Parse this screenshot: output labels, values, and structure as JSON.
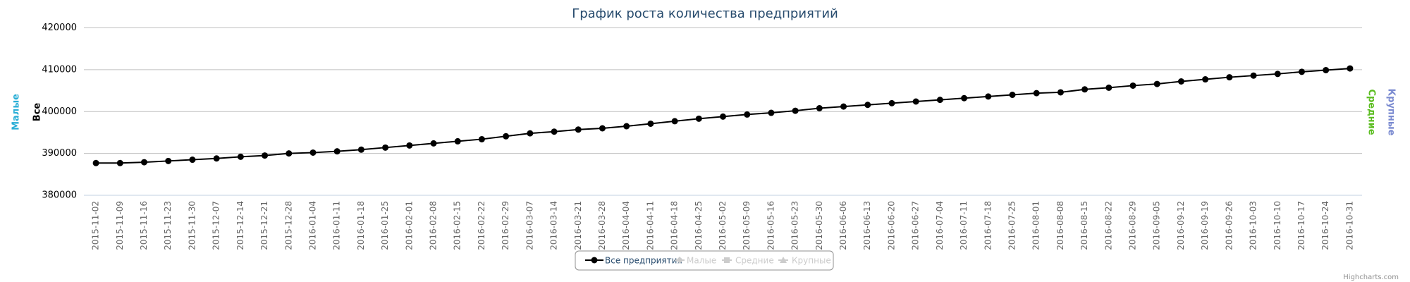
{
  "chart_data": {
    "type": "line",
    "title": "График роста количества предприятий",
    "categories": [
      "2015-11-02",
      "2015-11-09",
      "2015-11-16",
      "2015-11-23",
      "2015-11-30",
      "2015-12-07",
      "2015-12-14",
      "2015-12-21",
      "2015-12-28",
      "2016-01-04",
      "2016-01-11",
      "2016-01-18",
      "2016-01-25",
      "2016-02-01",
      "2016-02-08",
      "2016-02-15",
      "2016-02-22",
      "2016-02-29",
      "2016-03-07",
      "2016-03-14",
      "2016-03-21",
      "2016-03-28",
      "2016-04-04",
      "2016-04-11",
      "2016-04-18",
      "2016-04-25",
      "2016-05-02",
      "2016-05-09",
      "2016-05-16",
      "2016-05-23",
      "2016-05-30",
      "2016-06-06",
      "2016-06-13",
      "2016-06-20",
      "2016-06-27",
      "2016-07-04",
      "2016-07-11",
      "2016-07-18",
      "2016-07-25",
      "2016-08-01",
      "2016-08-08",
      "2016-08-15",
      "2016-08-22",
      "2016-08-29",
      "2016-09-05",
      "2016-09-12",
      "2016-09-19",
      "2016-09-26",
      "2016-10-03",
      "2016-10-10",
      "2016-10-17",
      "2016-10-24",
      "2016-10-31"
    ],
    "series": [
      {
        "name": "Все предприятия",
        "color": "#000000",
        "symbol": "circle",
        "visible": true,
        "values": [
          387700,
          387700,
          387900,
          388200,
          388500,
          388800,
          389200,
          389500,
          390000,
          390200,
          390500,
          390900,
          391400,
          391900,
          392400,
          392900,
          393400,
          394100,
          394800,
          395200,
          395700,
          396000,
          396500,
          397100,
          397700,
          398300,
          398800,
          399300,
          399700,
          400200,
          400800,
          401200,
          401600,
          402000,
          402400,
          402800,
          403200,
          403600,
          404000,
          404400,
          404600,
          405300,
          405700,
          406200,
          406600,
          407200,
          407700,
          408200,
          408600,
          409000,
          409500,
          409900,
          410300
        ]
      },
      {
        "name": "Малые",
        "color": "#cccccc",
        "symbol": "diamond",
        "visible": false
      },
      {
        "name": "Средние",
        "color": "#cccccc",
        "symbol": "square",
        "visible": false
      },
      {
        "name": "Крупные",
        "color": "#cccccc",
        "symbol": "triangle",
        "visible": false
      }
    ],
    "axis_titles": [
      {
        "text": "Малые",
        "color": "#2aaed6",
        "side": "left"
      },
      {
        "text": "Все",
        "color": "#000000",
        "side": "left"
      },
      {
        "text": "Средние",
        "color": "#5bbd20",
        "side": "right"
      },
      {
        "text": "Крупные",
        "color": "#7a8ad0",
        "side": "right"
      }
    ],
    "ylim": [
      380000,
      420000
    ],
    "yticks": [
      380000,
      390000,
      400000,
      410000,
      420000
    ],
    "grid": true,
    "credits": "Highcharts.com"
  }
}
